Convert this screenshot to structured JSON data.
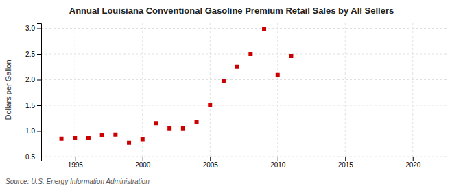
{
  "chart_data": {
    "type": "scatter",
    "title": "Annual Louisiana Conventional Gasoline Premium Retail Sales by All Sellers",
    "y_label": "Dollars per Gallon",
    "annotations": [
      "Source: U.S. Energy Information Administration"
    ],
    "x": [
      1994,
      1995,
      1996,
      1997,
      1998,
      1999,
      2000,
      2001,
      2002,
      2003,
      2004,
      2005,
      2006,
      2007,
      2008,
      2009,
      2010,
      2011
    ],
    "values": [
      0.85,
      0.86,
      0.86,
      0.92,
      0.93,
      0.77,
      0.84,
      1.15,
      1.05,
      1.05,
      1.17,
      1.5,
      1.97,
      2.25,
      2.5,
      2.99,
      2.09,
      2.46
    ],
    "color": "#cc0000",
    "marker": "square",
    "xlim": [
      1992.5,
      2022.5
    ],
    "ylim": [
      0.5,
      3.1
    ],
    "xticks": [
      1995,
      2000,
      2005,
      2010,
      2015,
      2020
    ],
    "yticks": [
      0.5,
      {
        "value": 1.0,
        "label": "1.0"
      },
      1.5,
      {
        "value": 2.0,
        "label": "2.0"
      },
      2.5,
      {
        "value": 3.0,
        "label": "3.0"
      }
    ],
    "grid": true
  }
}
